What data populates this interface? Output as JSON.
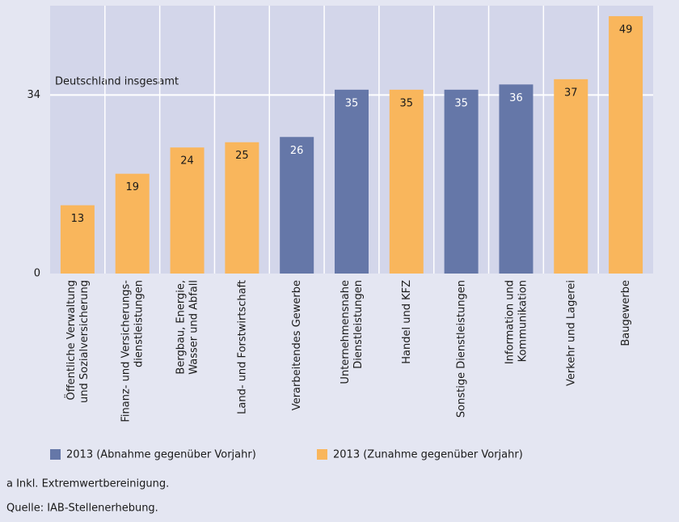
{
  "chart_data": {
    "type": "bar",
    "categories": [
      "Öffentliche Verwaltung\nund Sozialversicherung",
      "Finanz- und Versicherungs-\ndienstleistungen",
      "Bergbau, Energie,\nWasser und Abfall",
      "Land- und Forstwirtschaft",
      "Verarbeitendes Gewerbe",
      "Unternehmensnahe\nDienstleistungen",
      "Handel und KFZ",
      "Sonstige Dienstleistungen",
      "Information und\nKommunikation",
      "Verkehr und Lagerei",
      "Baugewerbe"
    ],
    "series": [
      {
        "name": "2013 (Abnahme gegenüber Vorjahr)",
        "color": "#6577a8",
        "values": [
          null,
          null,
          null,
          null,
          26,
          35,
          null,
          35,
          36,
          null,
          null
        ]
      },
      {
        "name": "2013 (Zunahme gegenüber Vorjahr)",
        "color": "#f9b65c",
        "values": [
          13,
          19,
          24,
          25,
          null,
          null,
          35,
          null,
          null,
          37,
          49
        ]
      }
    ],
    "ylim": [
      0,
      51
    ],
    "yticks": [
      0,
      34
    ],
    "grid": true,
    "annotation": "Deutschland insgesamt",
    "footnotes": [
      "a  Inkl. Extremwertbereinigung.",
      "Quelle: IAB-Stellenerhebung."
    ]
  }
}
